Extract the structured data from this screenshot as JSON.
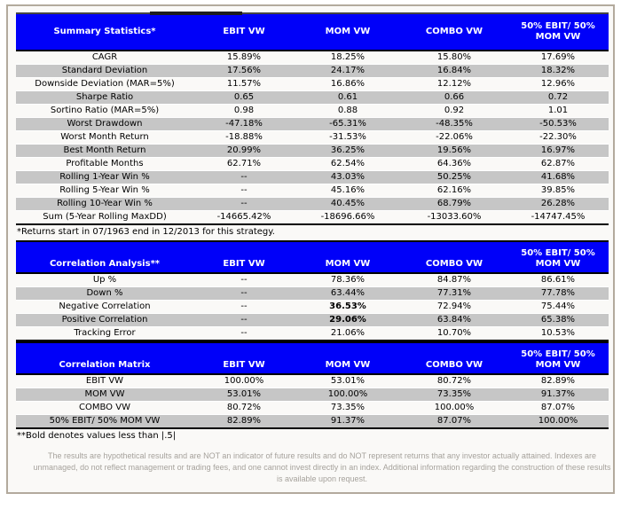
{
  "palette": {
    "header_bg": "#0000f9",
    "stripe": "#c6c6c6",
    "frame_border": "#b3aa9d",
    "disclaimer_text": "#a6a29c"
  },
  "tables": [
    {
      "title": "Summary Statistics*",
      "columns": [
        "EBIT VW",
        "MOM VW",
        "COMBO VW",
        "50% EBIT/ 50% MOM VW"
      ],
      "rows": [
        {
          "label": "CAGR",
          "values": [
            "15.89%",
            "18.25%",
            "15.80%",
            "17.69%"
          ]
        },
        {
          "label": "Standard Deviation",
          "values": [
            "17.56%",
            "24.17%",
            "16.84%",
            "18.32%"
          ]
        },
        {
          "label": "Downside Deviation (MAR=5%)",
          "values": [
            "11.57%",
            "16.86%",
            "12.12%",
            "12.96%"
          ]
        },
        {
          "label": "Sharpe Ratio",
          "values": [
            "0.65",
            "0.61",
            "0.66",
            "0.72"
          ]
        },
        {
          "label": "Sortino Ratio (MAR=5%)",
          "values": [
            "0.98",
            "0.88",
            "0.92",
            "1.01"
          ]
        },
        {
          "label": "Worst Drawdown",
          "values": [
            "-47.18%",
            "-65.31%",
            "-48.35%",
            "-50.53%"
          ]
        },
        {
          "label": "Worst Month Return",
          "values": [
            "-18.88%",
            "-31.53%",
            "-22.06%",
            "-22.30%"
          ]
        },
        {
          "label": "Best Month Return",
          "values": [
            "20.99%",
            "36.25%",
            "19.56%",
            "16.97%"
          ]
        },
        {
          "label": "Profitable Months",
          "values": [
            "62.71%",
            "62.54%",
            "64.36%",
            "62.87%"
          ]
        },
        {
          "label": "Rolling 1-Year Win %",
          "values": [
            "--",
            "43.03%",
            "50.25%",
            "41.68%"
          ]
        },
        {
          "label": "Rolling 5-Year Win %",
          "values": [
            "--",
            "45.16%",
            "62.16%",
            "39.85%"
          ]
        },
        {
          "label": "Rolling 10-Year Win %",
          "values": [
            "--",
            "40.45%",
            "68.79%",
            "26.28%"
          ]
        },
        {
          "label": "Sum (5-Year Rolling MaxDD)",
          "values": [
            "-14665.42%",
            "-18696.66%",
            "-13033.60%",
            "-14747.45%"
          ]
        }
      ],
      "footnote": "*Returns start in 07/1963 end in 12/2013 for this strategy."
    },
    {
      "title": "Correlation Analysis**",
      "columns": [
        "EBIT VW",
        "MOM VW",
        "COMBO VW",
        "50% EBIT/ 50% MOM VW"
      ],
      "rows": [
        {
          "label": "Up %",
          "values": [
            "--",
            "78.36%",
            "84.87%",
            "86.61%"
          ]
        },
        {
          "label": "Down %",
          "values": [
            "--",
            "63.44%",
            "77.31%",
            "77.78%"
          ]
        },
        {
          "label": "Negative Correlation",
          "values": [
            "--",
            "36.53%",
            "72.94%",
            "75.44%"
          ],
          "bold": [
            1
          ]
        },
        {
          "label": "Positive Correlation",
          "values": [
            "--",
            "29.06%",
            "63.84%",
            "65.38%"
          ],
          "bold": [
            1
          ]
        },
        {
          "label": "Tracking Error",
          "values": [
            "--",
            "21.06%",
            "10.70%",
            "10.53%"
          ]
        }
      ],
      "footnote": ""
    },
    {
      "title": "Correlation Matrix",
      "columns": [
        "EBIT VW",
        "MOM VW",
        "COMBO VW",
        "50% EBIT/ 50% MOM VW"
      ],
      "rows": [
        {
          "label": "EBIT VW",
          "values": [
            "100.00%",
            "53.01%",
            "80.72%",
            "82.89%"
          ]
        },
        {
          "label": "MOM VW",
          "values": [
            "53.01%",
            "100.00%",
            "73.35%",
            "91.37%"
          ]
        },
        {
          "label": "COMBO VW",
          "values": [
            "80.72%",
            "73.35%",
            "100.00%",
            "87.07%"
          ]
        },
        {
          "label": "50% EBIT/ 50% MOM VW",
          "values": [
            "82.89%",
            "91.37%",
            "87.07%",
            "100.00%"
          ]
        }
      ],
      "footnote": "**Bold denotes values less than |.5|"
    }
  ],
  "disclaimer": {
    "lines": [
      "The results are hypothetical results and are NOT an indicator of future results and do NOT represent returns that any investor actually attained. Indexes are",
      "unmanaged, do not reflect management or trading fees, and one cannot invest directly in an index. Additional information regarding the construction of these results",
      "is available upon request."
    ]
  }
}
